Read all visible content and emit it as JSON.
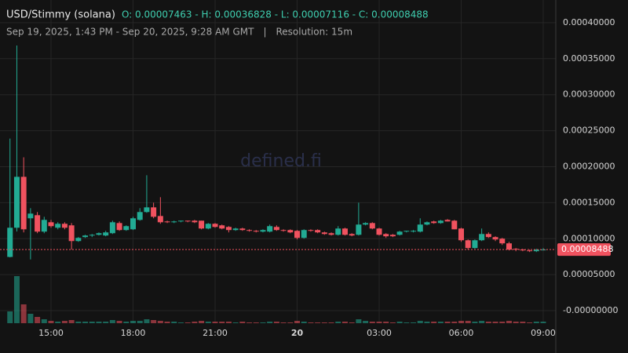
{
  "chart_data": {
    "type": "candlestick",
    "title": "USD/Stimmy (solana)",
    "ohlc_header": "O: 0.00007463 - H: 0.00036828 - L: 0.00007116 - C: 0.00008488",
    "subtitle": "Sep 19, 2025, 1:43 PM - Sep 20, 2025, 9:28 AM GMT",
    "separator": "|",
    "resolution": "Resolution: 15m",
    "watermark": "defined.fi",
    "up_color": "#22ab94",
    "down_color": "#f0525f",
    "grid": true,
    "x": [
      13.5,
      13.75,
      14,
      14.25,
      14.5,
      14.75,
      15,
      15.25,
      15.5,
      15.75,
      16,
      16.25,
      16.5,
      16.75,
      17,
      17.25,
      17.5,
      17.75,
      18,
      18.25,
      18.5,
      18.75,
      19,
      19.25,
      19.5,
      19.75,
      20,
      20.25,
      20.5,
      20.75,
      21,
      21.25,
      21.5,
      21.75,
      22,
      22.25,
      22.5,
      22.75,
      23,
      23.25,
      23.5,
      23.75,
      24,
      24.25,
      24.5,
      24.75,
      25,
      25.25,
      25.5,
      25.75,
      26,
      26.25,
      26.5,
      26.75,
      27,
      27.25,
      27.5,
      27.75,
      28,
      28.25,
      28.5,
      28.75,
      29,
      29.25,
      29.5,
      29.75,
      30,
      30.25,
      30.5,
      30.75,
      31,
      31.25,
      31.5,
      31.75,
      32,
      32.25,
      32.5,
      32.75,
      33
    ],
    "open": [
      7.463e-05,
      0.0001152,
      0.0001859,
      0.0001283,
      0.0001326,
      0.0001098,
      0.0001228,
      0.0001152,
      0.0001207,
      0.0001185,
      9.67e-05,
      0.0001022,
      0.0001044,
      0.0001054,
      0.0001044,
      0.0001076,
      0.0001217,
      0.000112,
      0.000113,
      0.0001261,
      0.000137,
      0.0001435,
      0.0001315,
      0.0001239,
      0.0001228,
      0.0001239,
      0.000125,
      0.000125,
      0.000125,
      0.0001141,
      0.0001207,
      0.0001185,
      0.0001163,
      0.000112,
      0.0001141,
      0.000112,
      0.0001109,
      0.0001098,
      0.0001098,
      0.0001163,
      0.000112,
      0.000112,
      0.0001109,
      0.0001011,
      0.000112,
      0.000112,
      0.0001087,
      0.0001076,
      0.0001054,
      0.0001141,
      0.0001065,
      0.0001054,
      0.0001196,
      0.0001217,
      0.0001141,
      0.0001065,
      0.0001054,
      0.0001054,
      0.0001098,
      0.0001098,
      0.0001098,
      0.0001196,
      0.0001239,
      0.0001217,
      0.0001261,
      0.000125,
      0.0001141,
      9.78e-05,
      8.7e-05,
      9.78e-05,
      0.0001065,
      0.0001022,
      0.0001,
      9.35e-05,
      8.59e-05,
      8.48e-05,
      8.37e-05,
      8.26e-05,
      8.48e-05
    ],
    "high": [
      0.0002391,
      0.00036828,
      0.000213,
      0.0001424,
      0.000137,
      0.0001304,
      0.0001261,
      0.0001228,
      0.0001228,
      0.0001217,
      0.0001022,
      0.0001054,
      0.0001065,
      0.0001087,
      0.0001109,
      0.000125,
      0.0001239,
      0.0001185,
      0.0001304,
      0.0001424,
      0.0001881,
      0.00015,
      0.0001576,
      0.000125,
      0.000125,
      0.000125,
      0.000125,
      0.0001261,
      0.000125,
      0.0001217,
      0.0001217,
      0.0001196,
      0.0001174,
      0.0001152,
      0.0001152,
      0.000113,
      0.000112,
      0.000113,
      0.0001196,
      0.0001185,
      0.000113,
      0.000113,
      0.000112,
      0.000113,
      0.000113,
      0.000113,
      0.0001098,
      0.0001087,
      0.0001174,
      0.0001152,
      0.0001076,
      0.00015,
      0.0001228,
      0.0001228,
      0.0001152,
      0.0001076,
      0.0001065,
      0.0001109,
      0.0001109,
      0.000112,
      0.0001283,
      0.0001239,
      0.000125,
      0.0001261,
      0.0001272,
      0.0001261,
      0.0001152,
      9.89e-05,
      9.89e-05,
      0.0001141,
      0.0001087,
      0.0001033,
      0.0001011,
      9.56e-05,
      8.7e-05,
      8.59e-05,
      8.48e-05,
      8.59e-05,
      8.7e-05
    ],
    "low": [
      7.4e-05,
      0.00011,
      0.0001087,
      7.116e-05,
      0.0001076,
      0.0001076,
      0.0001152,
      0.000113,
      0.000113,
      8.48e-05,
      9.56e-05,
      0.0001011,
      0.0001022,
      0.0001044,
      0.0001033,
      0.0001065,
      0.0001109,
      0.0001109,
      0.000112,
      0.000125,
      0.0001359,
      0.0001283,
      0.0001207,
      0.0001217,
      0.0001217,
      0.0001228,
      0.0001228,
      0.0001217,
      0.000113,
      0.000113,
      0.0001152,
      0.000113,
      0.0001087,
      0.0001109,
      0.0001109,
      0.0001098,
      0.0001087,
      0.0001087,
      0.0001087,
      0.0001109,
      0.0001098,
      0.0001076,
      9.9e-05,
      0.0001,
      0.0001098,
      0.0001076,
      0.0001054,
      0.0001044,
      0.0001044,
      0.0001044,
      0.0001033,
      0.0001044,
      0.0001185,
      0.000113,
      0.0001044,
      0.0001011,
      0.0001022,
      0.0001044,
      0.0001087,
      0.0001087,
      0.0001087,
      0.0001185,
      0.0001207,
      0.0001207,
      0.0001239,
      0.000113,
      9.56e-05,
      8.48e-05,
      8.59e-05,
      9.67e-05,
      0.0001011,
      9.67e-05,
      9.13e-05,
      8.37e-05,
      8.26e-05,
      8.26e-05,
      8.15e-05,
      8.15e-05,
      8.37e-05
    ],
    "close": [
      0.0001152,
      0.0001859,
      0.000113,
      0.0001348,
      0.0001098,
      0.0001261,
      0.0001174,
      0.0001207,
      0.0001152,
      9.67e-05,
      0.0001011,
      0.0001044,
      0.0001054,
      0.0001076,
      0.0001087,
      0.0001228,
      0.000112,
      0.0001174,
      0.0001283,
      0.000137,
      0.0001435,
      0.0001304,
      0.0001228,
      0.0001228,
      0.0001239,
      0.000125,
      0.0001239,
      0.0001228,
      0.0001141,
      0.0001207,
      0.0001163,
      0.0001141,
      0.000112,
      0.0001141,
      0.000112,
      0.0001109,
      0.0001098,
      0.000112,
      0.0001174,
      0.000112,
      0.0001109,
      0.0001087,
      0.0001011,
      0.000112,
      0.0001109,
      0.0001087,
      0.0001065,
      0.0001054,
      0.0001141,
      0.0001054,
      0.0001044,
      0.0001196,
      0.0001217,
      0.0001141,
      0.0001054,
      0.0001033,
      0.0001033,
      0.0001098,
      0.0001109,
      0.0001109,
      0.0001196,
      0.0001228,
      0.0001217,
      0.000125,
      0.0001239,
      0.000113,
      9.78e-05,
      8.7e-05,
      9.78e-05,
      0.0001065,
      0.0001022,
      9.89e-05,
      9.35e-05,
      8.48e-05,
      8.48e-05,
      8.37e-05,
      8.26e-05,
      8.48e-05,
      8.488e-05
    ],
    "volume": [
      15,
      60,
      24,
      12,
      8,
      5,
      3,
      2,
      3,
      4,
      2,
      2,
      2,
      2,
      2,
      4,
      3,
      2,
      3,
      3,
      5,
      4,
      3,
      2,
      2,
      1,
      1,
      2,
      3,
      2,
      2,
      2,
      2,
      1,
      2,
      1,
      1,
      1,
      2,
      2,
      1,
      1,
      3,
      2,
      1,
      1,
      1,
      1,
      2,
      2,
      1,
      5,
      3,
      2,
      2,
      2,
      1,
      2,
      1,
      1,
      3,
      2,
      2,
      2,
      2,
      2,
      3,
      3,
      2,
      3,
      2,
      2,
      2,
      3,
      2,
      2,
      1,
      2,
      2
    ],
    "xlim": [
      13.134,
      33.459
    ],
    "xticks": [
      {
        "value": 15,
        "label": "15:00"
      },
      {
        "value": 18,
        "label": "18:00"
      },
      {
        "value": 21,
        "label": "21:00"
      },
      {
        "value": 24,
        "label": "20"
      },
      {
        "value": 27,
        "label": "03:00"
      },
      {
        "value": 30,
        "label": "06:00"
      },
      {
        "value": 33,
        "label": "09:00"
      }
    ],
    "ylim": [
      -1.74e-05,
      0.0004315
    ],
    "yticks": [
      {
        "value": 0,
        "label": "-0.00000000"
      },
      {
        "value": 5e-05,
        "label": "0.00005000"
      },
      {
        "value": 0.0001,
        "label": "0.00010000"
      },
      {
        "value": 0.00015,
        "label": "0.00015000"
      },
      {
        "value": 0.0002,
        "label": "0.00020000"
      },
      {
        "value": 0.00025,
        "label": "0.00025000"
      },
      {
        "value": 0.0003,
        "label": "0.00030000"
      },
      {
        "value": 0.00035,
        "label": "0.00035000"
      },
      {
        "value": 0.0004,
        "label": "0.00040000"
      }
    ]
  }
}
